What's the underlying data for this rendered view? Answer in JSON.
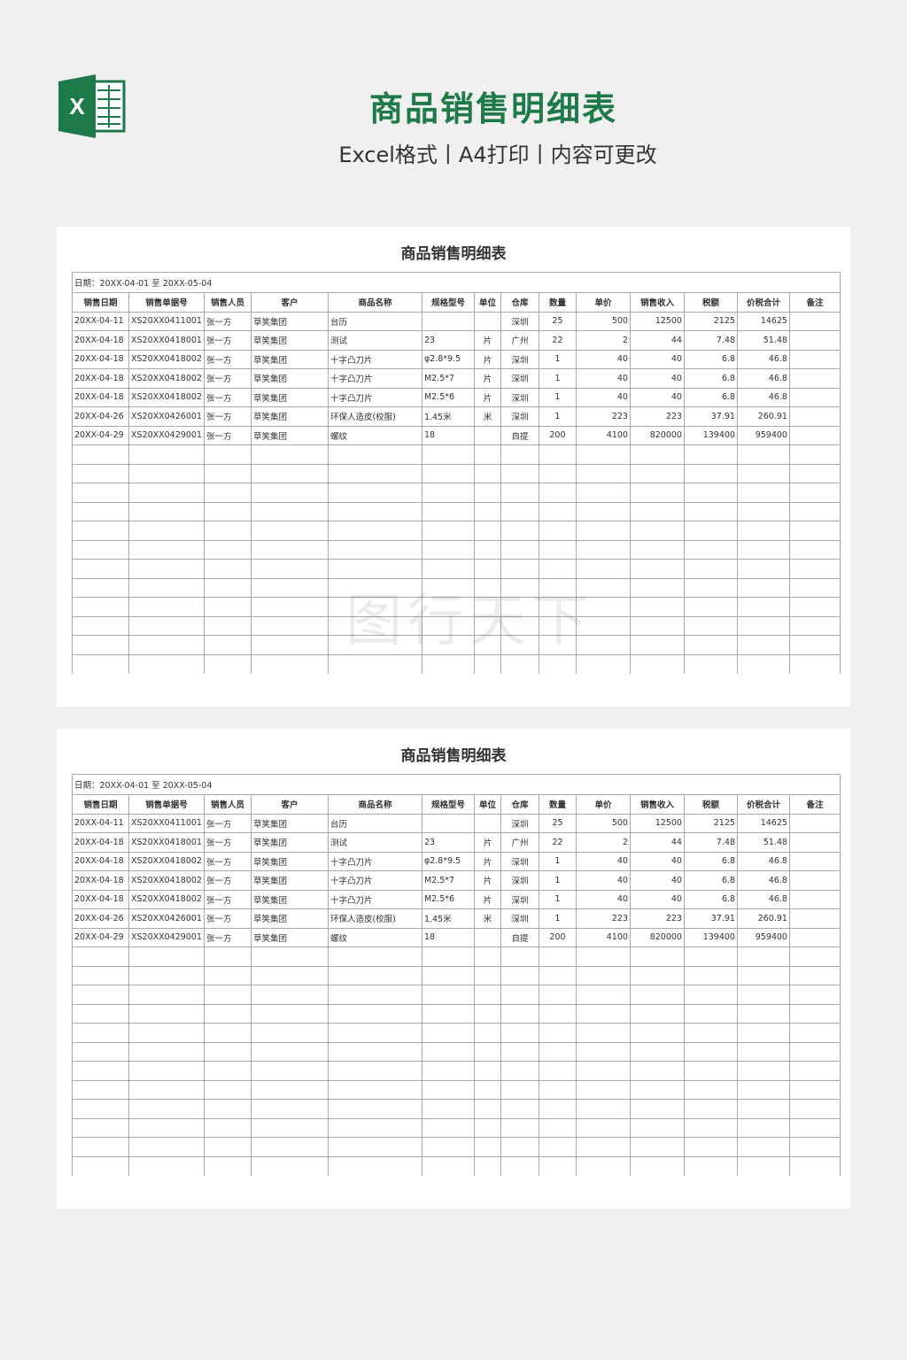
{
  "header": {
    "icon_letter": "X",
    "title": "商品销售明细表",
    "subtitle": "Excel格式丨A4打印丨内容可更改"
  },
  "watermark": "图行天下",
  "sheets": [
    {
      "title": "商品销售明细表",
      "date_range": "日期：20XX-04-01 至 20XX-05-04",
      "columns": [
        "销售日期",
        "销售单据号",
        "销售人员",
        "客户",
        "商品名称",
        "规格型号",
        "单位",
        "仓库",
        "数量",
        "单价",
        "销售收入",
        "税额",
        "价税合计",
        "备注"
      ],
      "rows": [
        [
          "20XX-04-11",
          "XS20XX0411001",
          "张一方",
          "草笑集团",
          "台历",
          null,
          null,
          "深圳",
          25,
          500,
          12500,
          2125,
          14625,
          null
        ],
        [
          "20XX-04-18",
          "XS20XX0418001",
          "张一方",
          "草笑集团",
          "测试",
          "23",
          "片",
          "广州",
          22,
          2,
          44,
          7.48,
          51.48,
          null
        ],
        [
          "20XX-04-18",
          "XS20XX0418002",
          "张一方",
          "草笑集团",
          "十字凸刀片",
          "φ2.8*9.5",
          "片",
          "深圳",
          1,
          40,
          40,
          6.8,
          46.8,
          null
        ],
        [
          "20XX-04-18",
          "XS20XX0418002",
          "张一方",
          "草笑集团",
          "十字凸刀片",
          "M2.5*7",
          "片",
          "深圳",
          1,
          40,
          40,
          6.8,
          46.8,
          null
        ],
        [
          "20XX-04-18",
          "XS20XX0418002",
          "张一方",
          "草笑集团",
          "十字凸刀片",
          "M2.5*6",
          "片",
          "深圳",
          1,
          40,
          40,
          6.8,
          46.8,
          null
        ],
        [
          "20XX-04-26",
          "XS20XX0426001",
          "张一方",
          "草笑集团",
          "环保人造皮(校服)",
          "1.45米",
          "米",
          "深圳",
          1,
          223,
          223,
          37.91,
          260.91,
          null
        ],
        [
          "20XX-04-29",
          "XS20XX0429001",
          "张一方",
          "草笑集团",
          "螺纹",
          "18",
          null,
          "自提",
          200,
          4100,
          820000,
          139400,
          959400,
          null
        ]
      ]
    },
    {
      "title": "商品销售明细表",
      "date_range": "日期：20XX-04-01 至 20XX-05-04",
      "columns": [
        "销售日期",
        "销售单据号",
        "销售人员",
        "客户",
        "商品名称",
        "规格型号",
        "单位",
        "仓库",
        "数量",
        "单价",
        "销售收入",
        "税额",
        "价税合计",
        "备注"
      ],
      "rows": [
        [
          "20XX-04-11",
          "XS20XX0411001",
          "张一方",
          "草笑集团",
          "台历",
          null,
          null,
          "深圳",
          25,
          500,
          12500,
          2125,
          14625,
          null
        ],
        [
          "20XX-04-18",
          "XS20XX0418001",
          "张一方",
          "草笑集团",
          "测试",
          "23",
          "片",
          "广州",
          22,
          2,
          44,
          7.48,
          51.48,
          null
        ],
        [
          "20XX-04-18",
          "XS20XX0418002",
          "张一方",
          "草笑集团",
          "十字凸刀片",
          "φ2.8*9.5",
          "片",
          "深圳",
          1,
          40,
          40,
          6.8,
          46.8,
          null
        ],
        [
          "20XX-04-18",
          "XS20XX0418002",
          "张一方",
          "草笑集团",
          "十字凸刀片",
          "M2.5*7",
          "片",
          "深圳",
          1,
          40,
          40,
          6.8,
          46.8,
          null
        ],
        [
          "20XX-04-18",
          "XS20XX0418002",
          "张一方",
          "草笑集团",
          "十字凸刀片",
          "M2.5*6",
          "片",
          "深圳",
          1,
          40,
          40,
          6.8,
          46.8,
          null
        ],
        [
          "20XX-04-26",
          "XS20XX0426001",
          "张一方",
          "草笑集团",
          "环保人造皮(校服)",
          "1.45米",
          "米",
          "深圳",
          1,
          223,
          223,
          37.91,
          260.91,
          null
        ],
        [
          "20XX-04-29",
          "XS20XX0429001",
          "张一方",
          "草笑集团",
          "螺纹",
          "18",
          null,
          "自提",
          200,
          4100,
          820000,
          139400,
          959400,
          null
        ]
      ]
    }
  ]
}
